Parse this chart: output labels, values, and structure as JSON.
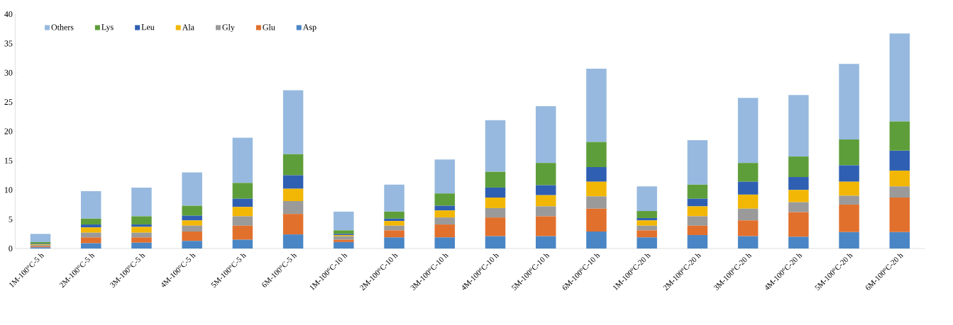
{
  "chart_data": {
    "type": "bar",
    "stacked": true,
    "categories": [
      "1M-100°C-5 h",
      "2M-100°C-5 h",
      "3M-100°C-5 h",
      "4M-100°C-5 h",
      "5M-100°C-5 h",
      "6M-100°C-5 h",
      "1M-100°C-10 h",
      "2M-100°C-10 h",
      "3M-100°C-10 h",
      "4M-100°C-10 h",
      "5M-100°C-10 h",
      "6M-100°C-10 h",
      "1M-100°C-20 h",
      "2M-100°C-20 h",
      "3M-100°C-20 h",
      "4M-100°C-20 h",
      "5M-100°C-20 h",
      "6M-100°C-20 h"
    ],
    "series": [
      {
        "name": "Asp",
        "color": "#4a86c5",
        "values": [
          0.2,
          0.9,
          1.0,
          1.3,
          1.5,
          2.4,
          1.1,
          1.9,
          1.9,
          2.1,
          2.1,
          2.9,
          1.9,
          2.3,
          2.1,
          2.0,
          2.8,
          2.8
        ]
      },
      {
        "name": "Glu",
        "color": "#e2702d",
        "values": [
          0.2,
          1.0,
          0.9,
          1.6,
          2.4,
          3.5,
          0.4,
          1.2,
          2.2,
          3.2,
          3.4,
          3.9,
          1.2,
          1.6,
          2.7,
          4.2,
          4.7,
          5.9
        ]
      },
      {
        "name": "Gly",
        "color": "#9a9a9a",
        "values": [
          0.2,
          0.8,
          0.8,
          1.0,
          1.6,
          2.2,
          0.6,
          0.8,
          1.2,
          1.6,
          1.7,
          2.1,
          0.8,
          1.6,
          2.0,
          1.7,
          1.5,
          1.9
        ]
      },
      {
        "name": "Ala",
        "color": "#f2b705",
        "values": [
          0.1,
          0.9,
          1.0,
          0.9,
          1.6,
          2.1,
          0.2,
          0.8,
          1.2,
          1.8,
          1.9,
          2.5,
          0.9,
          1.7,
          2.4,
          2.1,
          2.4,
          2.7
        ]
      },
      {
        "name": "Leu",
        "color": "#2f5fb3",
        "values": [
          0.1,
          0.5,
          0.4,
          0.8,
          1.4,
          2.3,
          0.2,
          0.4,
          0.8,
          1.7,
          1.7,
          2.5,
          0.4,
          1.3,
          2.2,
          2.2,
          2.8,
          3.4
        ]
      },
      {
        "name": "Lys",
        "color": "#5e9e3a",
        "values": [
          0.3,
          1.0,
          1.4,
          1.7,
          2.7,
          3.6,
          0.6,
          1.2,
          2.1,
          2.7,
          3.8,
          4.3,
          1.2,
          2.4,
          3.2,
          3.5,
          4.4,
          5.0
        ]
      },
      {
        "name": "Others",
        "color": "#97b9df",
        "values": [
          1.4,
          4.7,
          4.9,
          5.7,
          7.7,
          10.9,
          3.2,
          4.6,
          5.8,
          8.8,
          9.7,
          12.5,
          4.2,
          7.6,
          11.1,
          10.5,
          12.9,
          15.0
        ]
      }
    ],
    "ylim": [
      0,
      40
    ],
    "yticks": [
      0,
      5,
      10,
      15,
      20,
      25,
      30,
      35,
      40
    ],
    "legend": "top left"
  }
}
